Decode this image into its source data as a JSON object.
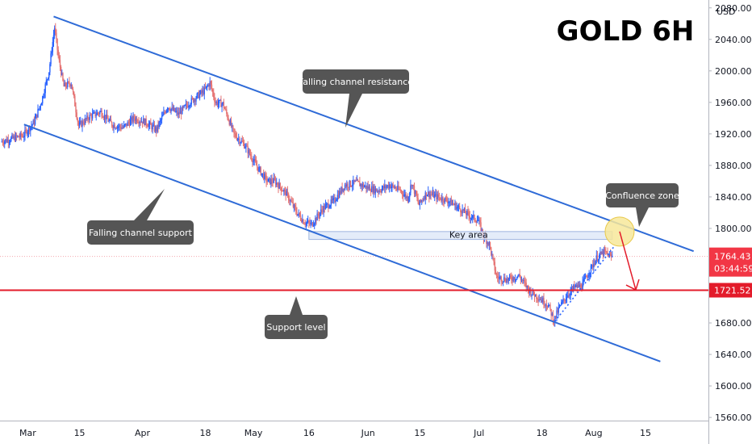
{
  "chart_data": {
    "type": "candlestick",
    "title": "GOLD 6H",
    "y_axis": {
      "unit_label": "USD",
      "range": [
        1556,
        2090
      ],
      "ticks": [
        "1560.00",
        "1600.00",
        "1640.00",
        "1680.00",
        "1720.00",
        "1760.00",
        "1800.00",
        "1840.00",
        "1880.00",
        "1920.00",
        "1960.00",
        "2000.00",
        "2040.00",
        "2080.00"
      ],
      "tick_values": [
        1560,
        1600,
        1640,
        1680,
        1720,
        1760,
        1800,
        1840,
        1880,
        1920,
        1960,
        2000,
        2040,
        2080
      ]
    },
    "x_axis": {
      "labels": [
        "Mar",
        "15",
        "Apr",
        "18",
        "May",
        "16",
        "Jun",
        "15",
        "Jul",
        "18",
        "Aug",
        "15"
      ],
      "label_days": [
        0,
        14,
        31,
        48,
        61,
        76,
        92,
        106,
        122,
        139,
        153,
        167
      ],
      "range_days": [
        -7.5,
        184
      ]
    },
    "price_path": [
      [
        -7,
        1910
      ],
      [
        -1,
        1918
      ],
      [
        2,
        1935
      ],
      [
        4,
        1962
      ],
      [
        6,
        2000
      ],
      [
        7.5,
        2055
      ],
      [
        8.5,
        2018
      ],
      [
        10,
        1980
      ],
      [
        12,
        1985
      ],
      [
        14,
        1930
      ],
      [
        17,
        1942
      ],
      [
        20,
        1948
      ],
      [
        23,
        1932
      ],
      [
        26,
        1928
      ],
      [
        29,
        1940
      ],
      [
        32,
        1935
      ],
      [
        35,
        1925
      ],
      [
        38,
        1955
      ],
      [
        41,
        1945
      ],
      [
        44,
        1960
      ],
      [
        48,
        1975
      ],
      [
        49.5,
        1985
      ],
      [
        51,
        1960
      ],
      [
        53,
        1958
      ],
      [
        56,
        1920
      ],
      [
        59,
        1905
      ],
      [
        62,
        1880
      ],
      [
        65,
        1860
      ],
      [
        67,
        1860
      ],
      [
        70,
        1845
      ],
      [
        73,
        1820
      ],
      [
        75,
        1808
      ],
      [
        77,
        1805
      ],
      [
        80,
        1825
      ],
      [
        83,
        1835
      ],
      [
        86,
        1855
      ],
      [
        89,
        1858
      ],
      [
        92,
        1852
      ],
      [
        95,
        1848
      ],
      [
        98,
        1855
      ],
      [
        101,
        1848
      ],
      [
        103,
        1838
      ],
      [
        104,
        1858
      ],
      [
        106,
        1830
      ],
      [
        108,
        1845
      ],
      [
        111,
        1840
      ],
      [
        114,
        1835
      ],
      [
        117,
        1825
      ],
      [
        120,
        1815
      ],
      [
        122,
        1810
      ],
      [
        123.5,
        1790
      ],
      [
        125,
        1780
      ],
      [
        127,
        1738
      ],
      [
        130,
        1735
      ],
      [
        133,
        1740
      ],
      [
        136,
        1720
      ],
      [
        139,
        1710
      ],
      [
        141,
        1702
      ],
      [
        142.5,
        1683
      ],
      [
        144,
        1700
      ],
      [
        146,
        1715
      ],
      [
        148,
        1725
      ],
      [
        150,
        1727
      ],
      [
        152,
        1745
      ],
      [
        154,
        1762
      ],
      [
        156,
        1770
      ],
      [
        158,
        1764
      ]
    ],
    "annotations": {
      "channel_resistance_label": "Falling channel resistance",
      "channel_support_label": "Falling channel support",
      "support_level_label": "Support level",
      "confluence_label": "Confluence zone",
      "key_area_label": "Key area"
    },
    "lines": {
      "resistance": [
        [
          7,
          2069
        ],
        [
          180,
          1771
        ]
      ],
      "support": [
        [
          -1,
          1932
        ],
        [
          171,
          1631
        ]
      ],
      "support_level": 1721.52
    },
    "key_area": {
      "start_day": 76,
      "end_day": 158,
      "low": 1786,
      "high": 1796
    },
    "confluence": {
      "day": 160,
      "price": 1796
    },
    "current_price": {
      "value": 1764.43,
      "label": "1764.43",
      "countdown": "03:44:59"
    },
    "support_tag": "1721.52",
    "colors": {
      "up": "#2962ff",
      "down": "#e57373",
      "channel": "#2f6bd7",
      "support_line": "#e31b2a",
      "current_tag": "#f23645",
      "support_tag_bg": "#e31b2a",
      "callout_bg": "#555555",
      "key_area_fill": "#dbe6f7",
      "confluence_fill": "#f7e89a"
    },
    "grid": false
  }
}
